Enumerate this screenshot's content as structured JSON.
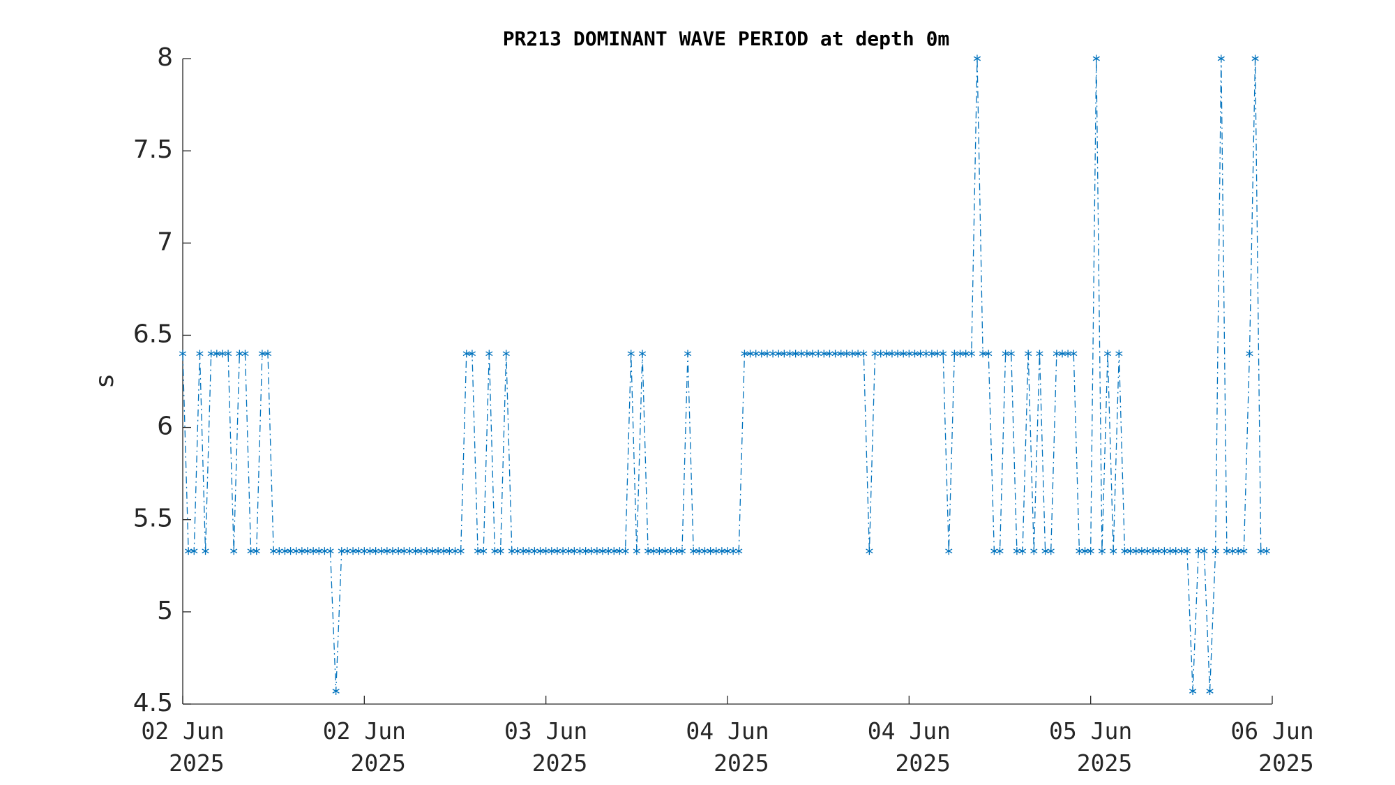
{
  "chart_data": {
    "type": "line",
    "title": "PR213 DOMINANT WAVE PERIOD at depth 0m",
    "y_label": "s",
    "line_style": "dashdot",
    "marker": "*",
    "grid": false,
    "xlim": [
      0,
      96
    ],
    "xticks": [
      {
        "value": 0,
        "label": "02 Jun\n2025"
      },
      {
        "value": 16,
        "label": "02 Jun\n2025"
      },
      {
        "value": 32,
        "label": "03 Jun\n2025"
      },
      {
        "value": 48,
        "label": "04 Jun\n2025"
      },
      {
        "value": 64,
        "label": "04 Jun\n2025"
      },
      {
        "value": 80,
        "label": "05 Jun\n2025"
      },
      {
        "value": 96,
        "label": "06 Jun\n2025"
      }
    ],
    "ylim": [
      4.5,
      8
    ],
    "yticks": [
      4.5,
      5,
      5.5,
      6,
      6.5,
      7,
      7.5,
      8
    ],
    "x": [
      0,
      0.5,
      1,
      1.5,
      2,
      2.5,
      3,
      3.5,
      4,
      4.5,
      5,
      5.5,
      6,
      6.5,
      7,
      7.5,
      8,
      8.5,
      9,
      9.5,
      10,
      10.5,
      11,
      11.5,
      12,
      12.5,
      13,
      13.5,
      14,
      14.5,
      15,
      15.5,
      16,
      16.5,
      17,
      17.5,
      18,
      18.5,
      19,
      19.5,
      20,
      20.5,
      21,
      21.5,
      22,
      22.5,
      23,
      23.5,
      24,
      24.5,
      25,
      25.5,
      26,
      26.5,
      27,
      27.5,
      28,
      28.5,
      29,
      29.5,
      30,
      30.5,
      31,
      31.5,
      32,
      32.5,
      33,
      33.5,
      34,
      34.5,
      35,
      35.5,
      36,
      36.5,
      37,
      37.5,
      38,
      38.5,
      39,
      39.5,
      40,
      40.5,
      41,
      41.5,
      42,
      42.5,
      43,
      43.5,
      44,
      44.5,
      45,
      45.5,
      46,
      46.5,
      47,
      47.5,
      48,
      48.5,
      49,
      49.5,
      50,
      50.5,
      51,
      51.5,
      52,
      52.5,
      53,
      53.5,
      54,
      54.5,
      55,
      55.5,
      56,
      56.5,
      57,
      57.5,
      58,
      58.5,
      59,
      59.5,
      60,
      60.5,
      61,
      61.5,
      62,
      62.5,
      63,
      63.5,
      64,
      64.5,
      65,
      65.5,
      66,
      66.5,
      67,
      67.5,
      68,
      68.5,
      69,
      69.5,
      70,
      70.5,
      71,
      71.5,
      72,
      72.5,
      73,
      73.5,
      74,
      74.5,
      75,
      75.5,
      76,
      76.5,
      77,
      77.5,
      78,
      78.5,
      79,
      79.5,
      80,
      80.5,
      81,
      81.5,
      82,
      82.5,
      83,
      83.5,
      84,
      84.5,
      85,
      85.5,
      86,
      86.5,
      87,
      87.5,
      88,
      88.5,
      89,
      89.5,
      90,
      90.5,
      91,
      91.5,
      92,
      92.5,
      93,
      93.5,
      94,
      94.5,
      95,
      95.5
    ],
    "series": [
      {
        "name": "PR213",
        "color": "#0072bd",
        "values": [
          6.4,
          5.33,
          5.33,
          6.4,
          5.33,
          6.4,
          6.4,
          6.4,
          6.4,
          5.33,
          6.4,
          6.4,
          5.33,
          5.33,
          6.4,
          6.4,
          5.33,
          5.33,
          5.33,
          5.33,
          5.33,
          5.33,
          5.33,
          5.33,
          5.33,
          5.33,
          5.33,
          4.57,
          5.33,
          5.33,
          5.33,
          5.33,
          5.33,
          5.33,
          5.33,
          5.33,
          5.33,
          5.33,
          5.33,
          5.33,
          5.33,
          5.33,
          5.33,
          5.33,
          5.33,
          5.33,
          5.33,
          5.33,
          5.33,
          5.33,
          6.4,
          6.4,
          5.33,
          5.33,
          6.4,
          5.33,
          5.33,
          6.4,
          5.33,
          5.33,
          5.33,
          5.33,
          5.33,
          5.33,
          5.33,
          5.33,
          5.33,
          5.33,
          5.33,
          5.33,
          5.33,
          5.33,
          5.33,
          5.33,
          5.33,
          5.33,
          5.33,
          5.33,
          5.33,
          6.4,
          5.33,
          6.4,
          5.33,
          5.33,
          5.33,
          5.33,
          5.33,
          5.33,
          5.33,
          6.4,
          5.33,
          5.33,
          5.33,
          5.33,
          5.33,
          5.33,
          5.33,
          5.33,
          5.33,
          6.4,
          6.4,
          6.4,
          6.4,
          6.4,
          6.4,
          6.4,
          6.4,
          6.4,
          6.4,
          6.4,
          6.4,
          6.4,
          6.4,
          6.4,
          6.4,
          6.4,
          6.4,
          6.4,
          6.4,
          6.4,
          6.4,
          5.33,
          6.4,
          6.4,
          6.4,
          6.4,
          6.4,
          6.4,
          6.4,
          6.4,
          6.4,
          6.4,
          6.4,
          6.4,
          6.4,
          5.33,
          6.4,
          6.4,
          6.4,
          6.4,
          8,
          6.4,
          6.4,
          5.33,
          5.33,
          6.4,
          6.4,
          5.33,
          5.33,
          6.4,
          5.33,
          6.4,
          5.33,
          5.33,
          6.4,
          6.4,
          6.4,
          6.4,
          5.33,
          5.33,
          5.33,
          8,
          5.33,
          6.4,
          5.33,
          6.4,
          5.33,
          5.33,
          5.33,
          5.33,
          5.33,
          5.33,
          5.33,
          5.33,
          5.33,
          5.33,
          5.33,
          5.33,
          4.57,
          5.33,
          5.33,
          4.57,
          5.33,
          8,
          5.33,
          5.33,
          5.33,
          5.33,
          6.4,
          8,
          5.33,
          5.33
        ]
      }
    ]
  }
}
